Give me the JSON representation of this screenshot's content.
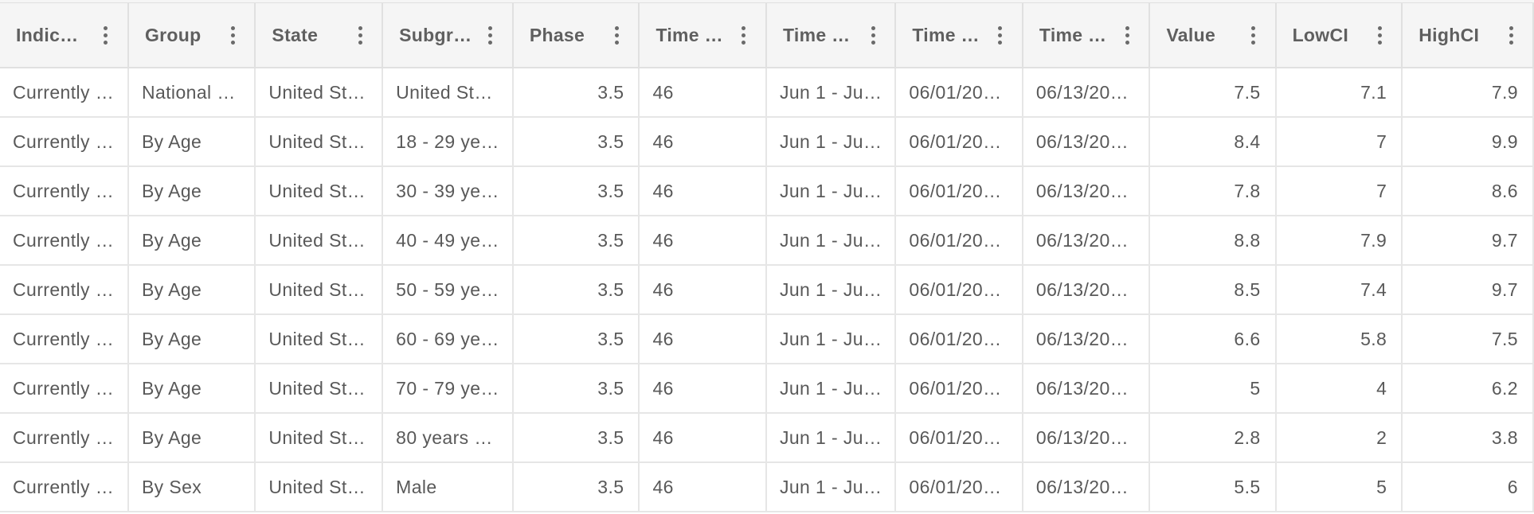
{
  "columns": [
    {
      "key": "indicator",
      "label": "Indic…"
    },
    {
      "key": "group",
      "label": "Group"
    },
    {
      "key": "state",
      "label": "State"
    },
    {
      "key": "subgroup",
      "label": "Subgr…"
    },
    {
      "key": "phase",
      "label": "Phase"
    },
    {
      "key": "time_period",
      "label": "Time …"
    },
    {
      "key": "time_period_label",
      "label": "Time …"
    },
    {
      "key": "time_period_start",
      "label": "Time …"
    },
    {
      "key": "time_period_end",
      "label": "Time …"
    },
    {
      "key": "value",
      "label": "Value"
    },
    {
      "key": "lowci",
      "label": "LowCI"
    },
    {
      "key": "highci",
      "label": "HighCI"
    }
  ],
  "rows": [
    [
      "Currently …",
      "National …",
      "United St…",
      "United St…",
      "3.5",
      "46",
      "Jun 1 - Ju…",
      "06/01/20…",
      "06/13/20…",
      "7.5",
      "7.1",
      "7.9"
    ],
    [
      "Currently …",
      "By Age",
      "United St…",
      "18 - 29 ye…",
      "3.5",
      "46",
      "Jun 1 - Ju…",
      "06/01/20…",
      "06/13/20…",
      "8.4",
      "7",
      "9.9"
    ],
    [
      "Currently …",
      "By Age",
      "United St…",
      "30 - 39 ye…",
      "3.5",
      "46",
      "Jun 1 - Ju…",
      "06/01/20…",
      "06/13/20…",
      "7.8",
      "7",
      "8.6"
    ],
    [
      "Currently …",
      "By Age",
      "United St…",
      "40 - 49 ye…",
      "3.5",
      "46",
      "Jun 1 - Ju…",
      "06/01/20…",
      "06/13/20…",
      "8.8",
      "7.9",
      "9.7"
    ],
    [
      "Currently …",
      "By Age",
      "United St…",
      "50 - 59 ye…",
      "3.5",
      "46",
      "Jun 1 - Ju…",
      "06/01/20…",
      "06/13/20…",
      "8.5",
      "7.4",
      "9.7"
    ],
    [
      "Currently …",
      "By Age",
      "United St…",
      "60 - 69 ye…",
      "3.5",
      "46",
      "Jun 1 - Ju…",
      "06/01/20…",
      "06/13/20…",
      "6.6",
      "5.8",
      "7.5"
    ],
    [
      "Currently …",
      "By Age",
      "United St…",
      "70 - 79 ye…",
      "3.5",
      "46",
      "Jun 1 - Ju…",
      "06/01/20…",
      "06/13/20…",
      "5",
      "4",
      "6.2"
    ],
    [
      "Currently …",
      "By Age",
      "United St…",
      "80 years …",
      "3.5",
      "46",
      "Jun 1 - Ju…",
      "06/01/20…",
      "06/13/20…",
      "2.8",
      "2",
      "3.8"
    ],
    [
      "Currently …",
      "By Sex",
      "United St…",
      "Male",
      "3.5",
      "46",
      "Jun 1 - Ju…",
      "06/01/20…",
      "06/13/20…",
      "5.5",
      "5",
      "6"
    ]
  ],
  "icons": {
    "column_menu": "kebab-menu-icon"
  },
  "colors": {
    "header_bg": "#f5f5f5",
    "border": "#e0e0e0",
    "text": "#595959"
  }
}
